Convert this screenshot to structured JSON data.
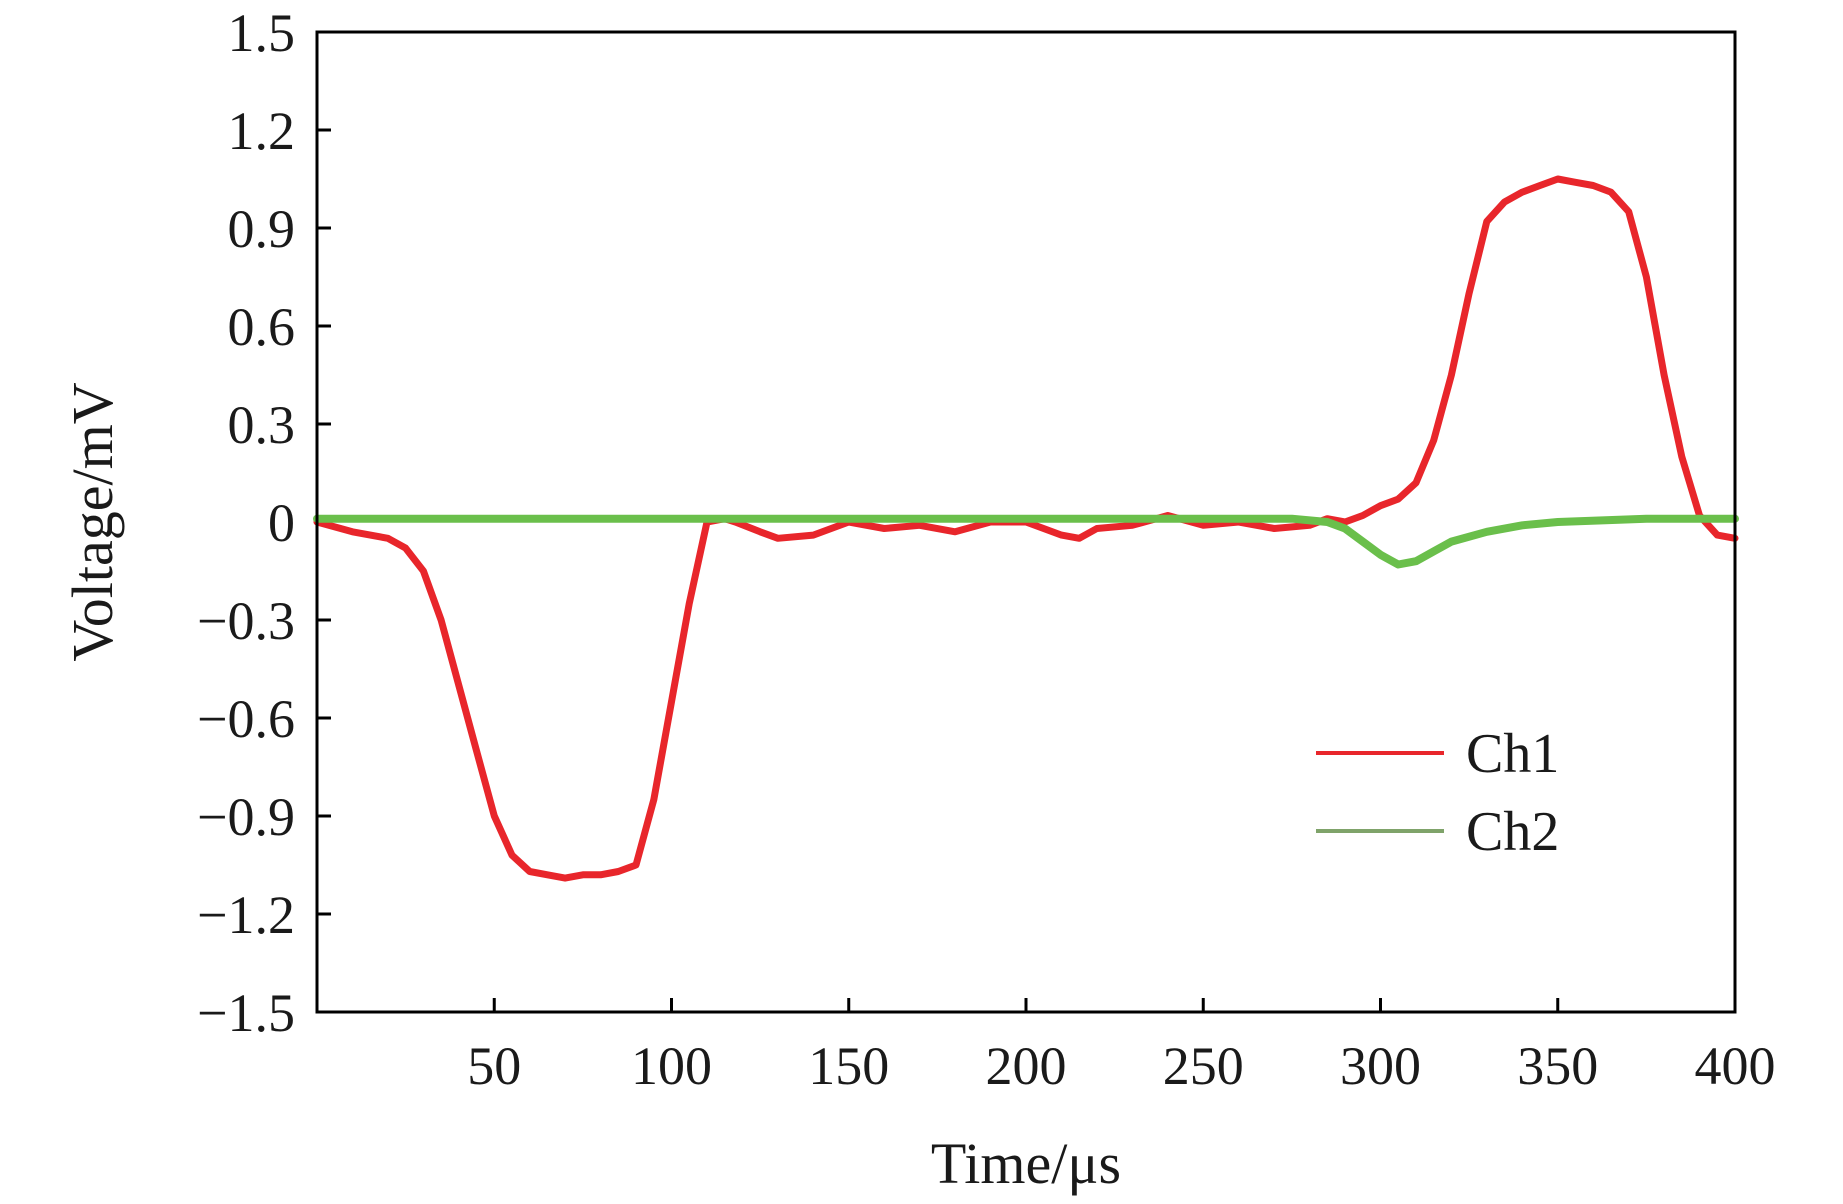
{
  "chart_data": {
    "type": "line",
    "title": "",
    "xlabel": "Time/μs",
    "ylabel": "Voltage/mV",
    "xlim": [
      0,
      400
    ],
    "ylim": [
      -1.5,
      1.5
    ],
    "x_ticks": [
      50,
      100,
      150,
      200,
      250,
      300,
      350,
      400
    ],
    "x_tick_labels": [
      "50",
      "100",
      "150",
      "200",
      "250",
      "300",
      "350",
      "400"
    ],
    "y_ticks": [
      1.5,
      1.2,
      0.9,
      0.6,
      0.3,
      0,
      -0.3,
      -0.6,
      -0.9,
      -1.2,
      -1.5
    ],
    "y_tick_labels": [
      "1.5",
      "1.2",
      "0.9",
      "0.6",
      "0.3",
      "0",
      "−0.3",
      "−0.6",
      "−0.9",
      "−1.2",
      "−1.5"
    ],
    "grid": false,
    "legend_position": "lower-right",
    "series": [
      {
        "name": "Ch1",
        "color": "#e8262b",
        "x": [
          0,
          10,
          20,
          25,
          30,
          35,
          40,
          45,
          50,
          55,
          60,
          65,
          70,
          75,
          80,
          85,
          90,
          95,
          100,
          105,
          110,
          115,
          118,
          125,
          130,
          140,
          150,
          160,
          170,
          180,
          190,
          200,
          210,
          215,
          220,
          230,
          240,
          250,
          260,
          270,
          280,
          285,
          290,
          295,
          300,
          305,
          310,
          315,
          320,
          325,
          330,
          335,
          340,
          345,
          350,
          355,
          360,
          365,
          370,
          375,
          380,
          385,
          390,
          395,
          400
        ],
        "y": [
          0,
          -0.03,
          -0.05,
          -0.08,
          -0.15,
          -0.3,
          -0.5,
          -0.7,
          -0.9,
          -1.02,
          -1.07,
          -1.08,
          -1.09,
          -1.08,
          -1.08,
          -1.07,
          -1.05,
          -0.85,
          -0.55,
          -0.25,
          0.0,
          0.01,
          0.0,
          -0.03,
          -0.05,
          -0.04,
          0.0,
          -0.02,
          -0.01,
          -0.03,
          0.0,
          0.0,
          -0.04,
          -0.05,
          -0.02,
          -0.01,
          0.02,
          -0.01,
          0.0,
          -0.02,
          -0.01,
          0.01,
          0.0,
          0.02,
          0.05,
          0.07,
          0.12,
          0.25,
          0.45,
          0.7,
          0.92,
          0.98,
          1.01,
          1.03,
          1.05,
          1.04,
          1.03,
          1.01,
          0.95,
          0.75,
          0.45,
          0.2,
          0.02,
          -0.04,
          -0.05
        ]
      },
      {
        "name": "Ch2",
        "color": "#6abf4b",
        "x": [
          0,
          25,
          50,
          75,
          100,
          125,
          150,
          175,
          200,
          225,
          250,
          275,
          285,
          290,
          295,
          300,
          305,
          310,
          315,
          320,
          330,
          340,
          350,
          375,
          400
        ],
        "y": [
          0.01,
          0.01,
          0.01,
          0.01,
          0.01,
          0.01,
          0.01,
          0.01,
          0.01,
          0.01,
          0.01,
          0.01,
          0.0,
          -0.02,
          -0.06,
          -0.1,
          -0.13,
          -0.12,
          -0.09,
          -0.06,
          -0.03,
          -0.01,
          0.0,
          0.01,
          0.01
        ]
      }
    ]
  }
}
